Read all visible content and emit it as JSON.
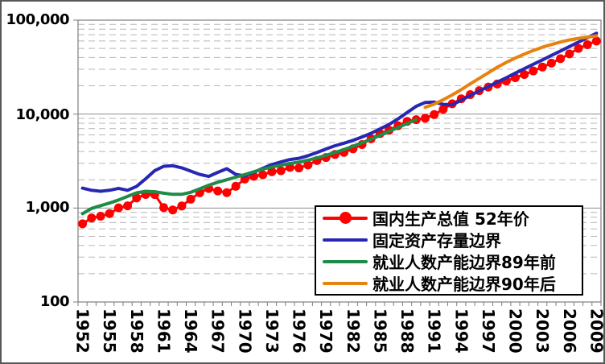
{
  "chart_data": {
    "type": "line",
    "title": "",
    "y_axis": {
      "scale": "log",
      "min": 100,
      "max": 100000,
      "tick_labels": [
        "100,000",
        "10,000",
        "1,000",
        "100"
      ],
      "tick_values": [
        100000,
        10000,
        1000,
        100
      ],
      "minor_grid": "dashed",
      "major_grid": "solid"
    },
    "x_axis": {
      "start_year": 1952,
      "end_year": 2009,
      "label_every": 3,
      "tick_labels": [
        "1952",
        "1955",
        "1958",
        "1961",
        "1964",
        "1967",
        "1970",
        "1973",
        "1976",
        "1979",
        "1982",
        "1985",
        "1988",
        "1991",
        "1994",
        "1997",
        "2000",
        "2003",
        "2006",
        "2009"
      ]
    },
    "legend_position": "bottom-right-overlay",
    "colors": {
      "grid_minor": "#b7b7b7",
      "grid_major": "#8c8c8c",
      "axis": "#7f7f7f",
      "border": "#595959",
      "legend_border": "#000000"
    },
    "series": [
      {
        "id": "gdp",
        "name": "国内生产总值 52年价",
        "color": "#fe0000",
        "marker": "circle",
        "start_year": 1952,
        "values": [
          679,
          785,
          818,
          874,
          1005,
          1056,
          1281,
          1394,
          1390,
          1011,
          954,
          1052,
          1244,
          1456,
          1612,
          1520,
          1458,
          1704,
          2035,
          2178,
          2261,
          2439,
          2495,
          2712,
          2669,
          2872,
          3208,
          3452,
          3721,
          3915,
          4271,
          4736,
          5456,
          6193,
          6738,
          7520,
          8370,
          8713,
          9044,
          9876,
          11278,
          12857,
          14541,
          16126,
          17739,
          19389,
          20901,
          22489,
          24378,
          26401,
          28804,
          31684,
          34884,
          38826,
          43757,
          49971,
          54768,
          59807
        ]
      },
      {
        "id": "capital-stock",
        "name": "固定资产存量边界",
        "color": "#2727b3",
        "marker": null,
        "start_year": 1952,
        "values": [
          1630,
          1545,
          1510,
          1545,
          1620,
          1545,
          1700,
          2050,
          2500,
          2780,
          2820,
          2680,
          2470,
          2280,
          2170,
          2400,
          2620,
          2280,
          2200,
          2400,
          2650,
          2900,
          3100,
          3280,
          3380,
          3600,
          3900,
          4250,
          4600,
          4900,
          5250,
          5700,
          6250,
          6950,
          7750,
          8900,
          10400,
          12100,
          13300,
          13400,
          12700,
          12600,
          14000,
          15800,
          17600,
          19600,
          21900,
          24400,
          27300,
          30400,
          33900,
          37700,
          42100,
          46900,
          52300,
          58300,
          65000,
          72500
        ]
      },
      {
        "id": "employment-pre89",
        "name": "就业人数产能边界89年前",
        "color": "#1e8b47",
        "marker": null,
        "start_year": 1952,
        "values": [
          870,
          990,
          1060,
          1130,
          1220,
          1330,
          1450,
          1510,
          1490,
          1440,
          1400,
          1400,
          1470,
          1600,
          1750,
          1880,
          2000,
          2130,
          2270,
          2430,
          2600,
          2730,
          2860,
          2980,
          3080,
          3230,
          3420,
          3640,
          3900,
          4200,
          4550,
          4950,
          5400,
          5950,
          6550,
          7200,
          7950,
          8700
        ]
      },
      {
        "id": "employment-post90",
        "name": "就业人数产能边界90年后",
        "color": "#e8820e",
        "marker": null,
        "start_year": 1990,
        "values": [
          11800,
          12800,
          14200,
          16000,
          18200,
          21000,
          24000,
          27500,
          31500,
          35500,
          39500,
          43500,
          47500,
          51500,
          55000,
          58500,
          61500,
          64000,
          66000,
          68000
        ]
      }
    ]
  }
}
